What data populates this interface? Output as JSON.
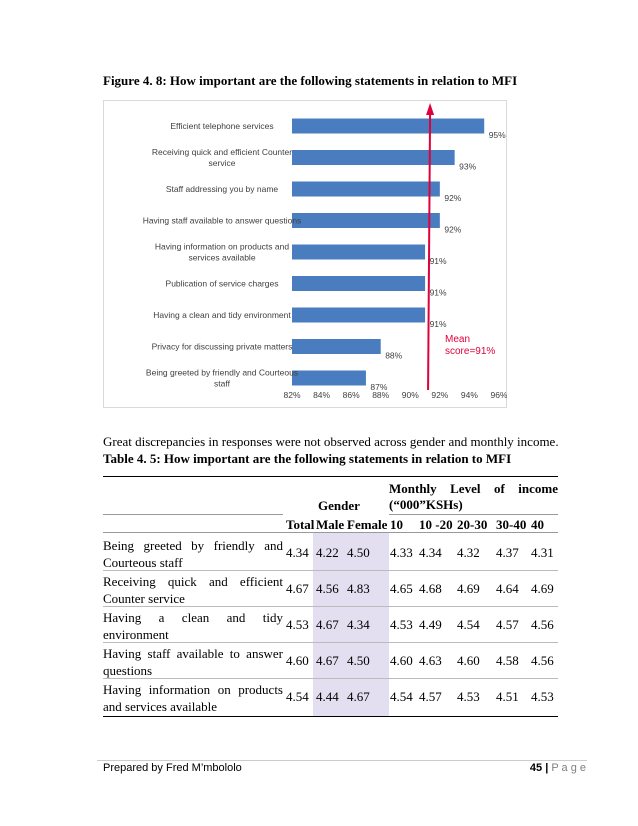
{
  "figure_caption": "Figure 4. 8: How important are the following statements in relation to MFI",
  "chart_data": {
    "type": "bar",
    "orientation": "horizontal",
    "categories": [
      "Efficient telephone services",
      "Receiving quick and efficient Counter service",
      "Staff addressing you by name",
      "Having  staff available to answer questions",
      "Having information on products and services available",
      "Publication of service charges",
      "Having a clean and tidy environment",
      "Privacy for discussing private matters",
      "Being greeted by friendly and Courteous staff"
    ],
    "category_lines": [
      [
        "Efficient telephone services"
      ],
      [
        "Receiving quick and efficient Counter",
        "service"
      ],
      [
        "Staff addressing you by name"
      ],
      [
        "Having  staff available to answer questions"
      ],
      [
        "Having information on products and",
        "services available"
      ],
      [
        "Publication of service charges"
      ],
      [
        "Having a clean and tidy environment"
      ],
      [
        "Privacy for discussing private matters"
      ],
      [
        "Being greeted by friendly and Courteous",
        "staff"
      ]
    ],
    "values": [
      95,
      93,
      92,
      92,
      91,
      91,
      91,
      88,
      87
    ],
    "value_labels": [
      "95%",
      "93%",
      "92%",
      "92%",
      "91%",
      "91%",
      "91%",
      "88%",
      "87%"
    ],
    "xlim": [
      82,
      96
    ],
    "xticks": [
      "82%",
      "84%",
      "86%",
      "88%",
      "90%",
      "92%",
      "94%",
      "96%"
    ],
    "mean_value": 91,
    "annotation": [
      "Mean",
      "score=91%"
    ],
    "bar_color": "#4a7dbf",
    "annotation_color": "#e0003b",
    "grid": false
  },
  "paragraph": "Great discrepancies in responses were not observed across gender and monthly income.",
  "table_caption": "Table 4. 5: How important are the following statements in relation to MFI",
  "table": {
    "group_gender": "Gender",
    "group_income_line1": [
      "Monthly",
      "Level",
      "of",
      "income"
    ],
    "group_income_line2": "(“000”KSHs)",
    "columns": [
      "Total",
      "Male",
      "Female",
      "10",
      "10 -20",
      "20-30",
      "30-40",
      "40"
    ],
    "rows": [
      {
        "label": "Being greeted by friendly and Courteous staff",
        "values": [
          "4.34",
          "4.22",
          "4.50",
          "4.33",
          "4.34",
          "4.32",
          "4.37",
          "4.31"
        ]
      },
      {
        "label": "Receiving quick and efficient Counter service",
        "values": [
          "4.67",
          "4.56",
          "4.83",
          "4.65",
          "4.68",
          "4.69",
          "4.64",
          "4.69"
        ]
      },
      {
        "label": "Having a clean and tidy environment",
        "values": [
          "4.53",
          "4.67",
          "4.34",
          "4.53",
          "4.49",
          "4.54",
          "4.57",
          "4.56"
        ]
      },
      {
        "label": "Having staff available to answer questions",
        "values": [
          "4.60",
          "4.67",
          "4.50",
          "4.60",
          "4.63",
          "4.60",
          "4.58",
          "4.56"
        ]
      },
      {
        "label": "Having information on products and services available",
        "values": [
          "4.54",
          "4.44",
          "4.67",
          "4.54",
          "4.57",
          "4.53",
          "4.51",
          "4.53"
        ]
      }
    ]
  },
  "footer": {
    "left": "Prepared by Fred M’mbololo",
    "page_number": "45",
    "separator": "|",
    "page_word": "P a g e"
  }
}
